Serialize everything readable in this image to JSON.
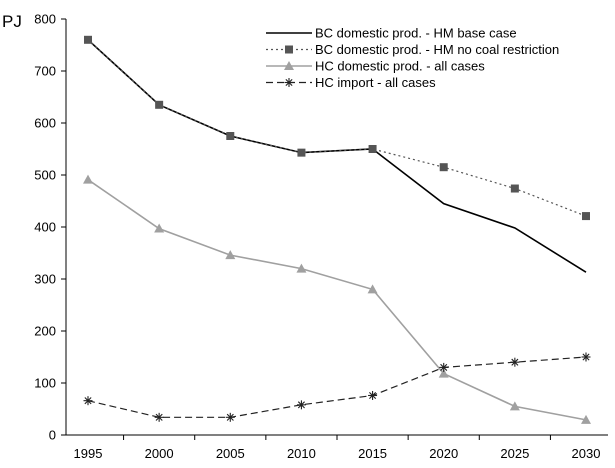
{
  "chart_data": {
    "type": "line",
    "title": "",
    "xlabel": "",
    "ylabel": "PJ",
    "x": [
      1995,
      2000,
      2005,
      2010,
      2015,
      2020,
      2025,
      2030
    ],
    "ylim": [
      0,
      800
    ],
    "yticks": [
      0,
      100,
      200,
      300,
      400,
      500,
      600,
      700,
      800
    ],
    "grid": false,
    "legend_position": "top-right",
    "series": [
      {
        "name": "BC domestic prod. - HM base case",
        "values": [
          760,
          635,
          575,
          543,
          550,
          445,
          398,
          313
        ],
        "color": "#000000",
        "line_style": "solid",
        "marker": "none"
      },
      {
        "name": "BC domestic prod. - HM no coal restriction",
        "values": [
          760,
          635,
          575,
          543,
          550,
          515,
          474,
          421
        ],
        "color": "#555555",
        "line_style": "dotted",
        "marker": "square"
      },
      {
        "name": "HC domestic prod. - all cases",
        "values": [
          491,
          397,
          346,
          320,
          280,
          118,
          55,
          29
        ],
        "color": "#a0a0a0",
        "line_style": "solid",
        "marker": "triangle"
      },
      {
        "name": "HC import - all cases",
        "values": [
          66,
          34,
          34,
          58,
          76,
          130,
          140,
          150
        ],
        "color": "#222222",
        "line_style": "dashed",
        "marker": "asterisk"
      }
    ]
  }
}
